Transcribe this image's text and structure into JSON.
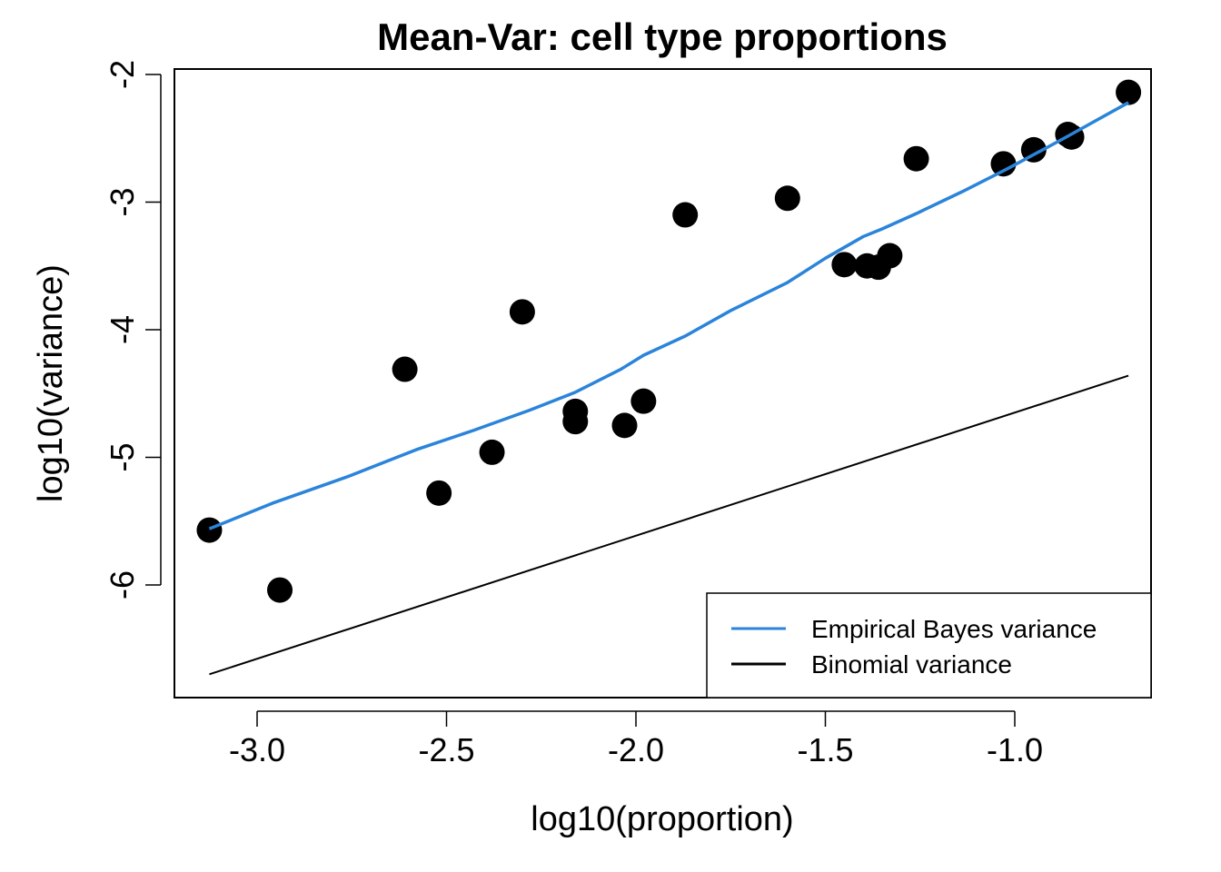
{
  "chart_data": {
    "type": "scatter",
    "title": "Mean-Var: cell type proportions",
    "xlabel": "log10(proportion)",
    "ylabel": "log10(variance)",
    "xlim": [
      -3.22,
      -0.62
    ],
    "ylim": [
      -6.85,
      -1.96
    ],
    "xticks": [
      -3.0,
      -2.5,
      -2.0,
      -1.5,
      -1.0
    ],
    "xtick_labels": [
      "-3.0",
      "-2.5",
      "-2.0",
      "-1.5",
      "-1.0"
    ],
    "yticks": [
      -2,
      -3,
      -4,
      -5,
      -6
    ],
    "ytick_labels": [
      "-2",
      "-3",
      "-4",
      "-5",
      "-6"
    ],
    "grid": false,
    "legend_position": "bottom-right",
    "points": {
      "name": "cell types",
      "color": "#000000",
      "x": [
        -3.126,
        -2.94,
        -2.61,
        -2.52,
        -2.38,
        -2.3,
        -2.16,
        -2.16,
        -2.03,
        -1.98,
        -1.87,
        -1.6,
        -1.45,
        -1.39,
        -1.36,
        -1.33,
        -1.26,
        -1.03,
        -0.95,
        -0.86,
        -0.85,
        -0.7
      ],
      "y": [
        -5.57,
        -6.04,
        -4.31,
        -5.28,
        -4.96,
        -3.86,
        -4.64,
        -4.72,
        -4.75,
        -4.56,
        -3.1,
        -2.97,
        -3.49,
        -3.5,
        -3.51,
        -3.42,
        -2.66,
        -2.7,
        -2.59,
        -2.47,
        -2.49,
        -2.14
      ]
    },
    "series": [
      {
        "name": "Empirical Bayes variance",
        "color": "#2A84DA",
        "x": [
          -3.126,
          -2.96,
          -2.76,
          -2.58,
          -2.43,
          -2.28,
          -2.16,
          -2.04,
          -1.98,
          -1.87,
          -1.75,
          -1.6,
          -1.5,
          -1.4,
          -1.35,
          -1.26,
          -1.14,
          -1.02,
          -0.87,
          -0.7
        ],
        "y": [
          -5.56,
          -5.36,
          -5.15,
          -4.94,
          -4.79,
          -4.63,
          -4.49,
          -4.31,
          -4.2,
          -4.05,
          -3.85,
          -3.63,
          -3.44,
          -3.27,
          -3.21,
          -3.09,
          -2.92,
          -2.74,
          -2.5,
          -2.22
        ]
      },
      {
        "name": "Binomial variance",
        "color": "#000000",
        "x": [
          -3.126,
          -0.7
        ],
        "y": [
          -6.7,
          -4.36
        ]
      }
    ],
    "legend": [
      {
        "label": "Empirical Bayes variance",
        "color": "#2A84DA"
      },
      {
        "label": "Binomial variance",
        "color": "#000000"
      }
    ]
  }
}
